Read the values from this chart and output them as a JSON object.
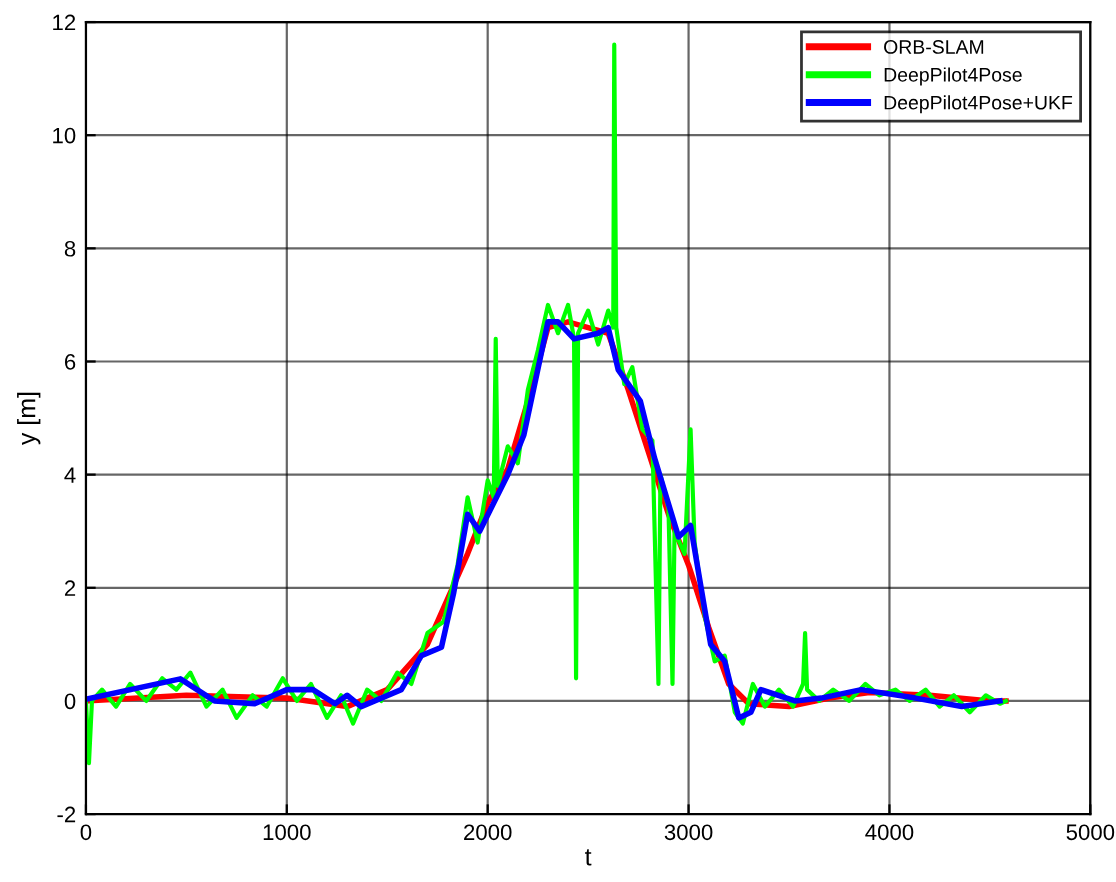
{
  "chart_data": {
    "type": "line",
    "xlabel": "t",
    "ylabel": "y [m]",
    "xlim": [
      0,
      5000
    ],
    "ylim": [
      -2,
      12
    ],
    "xticks": [
      0,
      1000,
      2000,
      3000,
      4000,
      5000
    ],
    "yticks": [
      -2,
      0,
      2,
      4,
      6,
      8,
      10,
      12
    ],
    "grid": true,
    "legend": "top right",
    "series": [
      {
        "name": "ORB-SLAM",
        "color": "#ff0000",
        "x": [
          0,
          500,
          1000,
          1300,
          1500,
          1700,
          1900,
          2000,
          2100,
          2200,
          2300,
          2400,
          2500,
          2600,
          2700,
          2800,
          2900,
          3000,
          3100,
          3200,
          3300,
          3500,
          3700,
          3900,
          4200,
          4500,
          4580
        ],
        "values": [
          0,
          0.1,
          0.05,
          -0.1,
          0.2,
          1.0,
          2.6,
          3.5,
          4.1,
          5.3,
          6.6,
          6.7,
          6.6,
          6.5,
          5.5,
          4.4,
          3.3,
          2.4,
          1.3,
          0.3,
          -0.05,
          -0.1,
          0.05,
          0.15,
          0.1,
          0,
          0
        ]
      },
      {
        "name": "DeepPilot4Pose",
        "color": "#00ff00",
        "x": [
          0,
          15,
          30,
          80,
          150,
          220,
          300,
          380,
          450,
          520,
          600,
          680,
          750,
          830,
          900,
          980,
          1050,
          1120,
          1200,
          1270,
          1330,
          1400,
          1470,
          1550,
          1620,
          1700,
          1780,
          1850,
          1900,
          1950,
          2000,
          2030,
          2040,
          2050,
          2100,
          2150,
          2200,
          2250,
          2300,
          2350,
          2400,
          2430,
          2440,
          2450,
          2500,
          2550,
          2600,
          2625,
          2630,
          2640,
          2680,
          2720,
          2770,
          2820,
          2850,
          2860,
          2900,
          2920,
          2930,
          2980,
          3010,
          3030,
          3080,
          3130,
          3180,
          3230,
          3270,
          3320,
          3380,
          3450,
          3520,
          3570,
          3580,
          3590,
          3650,
          3720,
          3800,
          3880,
          3950,
          4030,
          4100,
          4180,
          4250,
          4320,
          4400,
          4480,
          4550,
          4580
        ],
        "values": [
          0,
          -1.1,
          0,
          0.2,
          -0.1,
          0.3,
          0.0,
          0.4,
          0.2,
          0.5,
          -0.1,
          0.2,
          -0.3,
          0.1,
          -0.1,
          0.4,
          0.0,
          0.3,
          -0.3,
          0.1,
          -0.4,
          0.2,
          0.0,
          0.5,
          0.3,
          1.2,
          1.4,
          2.4,
          3.6,
          2.8,
          3.9,
          3.6,
          6.4,
          3.8,
          4.5,
          4.2,
          5.5,
          6.2,
          7.0,
          6.5,
          7.0,
          6.4,
          0.4,
          6.5,
          6.9,
          6.3,
          6.9,
          6.6,
          11.6,
          6.6,
          5.6,
          5.9,
          4.8,
          4.6,
          0.3,
          4.0,
          3.4,
          0.3,
          3.0,
          2.6,
          4.8,
          2.8,
          1.5,
          0.7,
          0.8,
          -0.2,
          -0.4,
          0.3,
          -0.1,
          0.2,
          -0.1,
          0.3,
          1.2,
          0.2,
          0.0,
          0.2,
          0.0,
          0.3,
          0.1,
          0.2,
          0.0,
          0.2,
          -0.1,
          0.1,
          -0.2,
          0.1,
          -0.05,
          0
        ]
      },
      {
        "name": "DeepPilot4Pose+UKF",
        "color": "#0000ff",
        "x": [
          0,
          470,
          640,
          840,
          1000,
          1130,
          1240,
          1300,
          1370,
          1570,
          1670,
          1770,
          1830,
          1900,
          1960,
          2100,
          2180,
          2300,
          2350,
          2430,
          2550,
          2600,
          2650,
          2760,
          2830,
          2950,
          3010,
          3110,
          3180,
          3250,
          3310,
          3360,
          3530,
          3660,
          3860,
          4130,
          4360,
          4550
        ],
        "values": [
          0.03,
          0.39,
          0,
          -0.05,
          0.2,
          0.2,
          -0.05,
          0.1,
          -0.1,
          0.2,
          0.8,
          0.95,
          1.9,
          3.3,
          3.0,
          4.0,
          4.7,
          6.7,
          6.7,
          6.4,
          6.5,
          6.6,
          5.85,
          5.3,
          4.3,
          2.9,
          3.1,
          1.0,
          0.7,
          -0.3,
          -0.2,
          0.2,
          0.0,
          0.05,
          0.2,
          0.05,
          -0.1,
          0.0
        ]
      }
    ]
  }
}
